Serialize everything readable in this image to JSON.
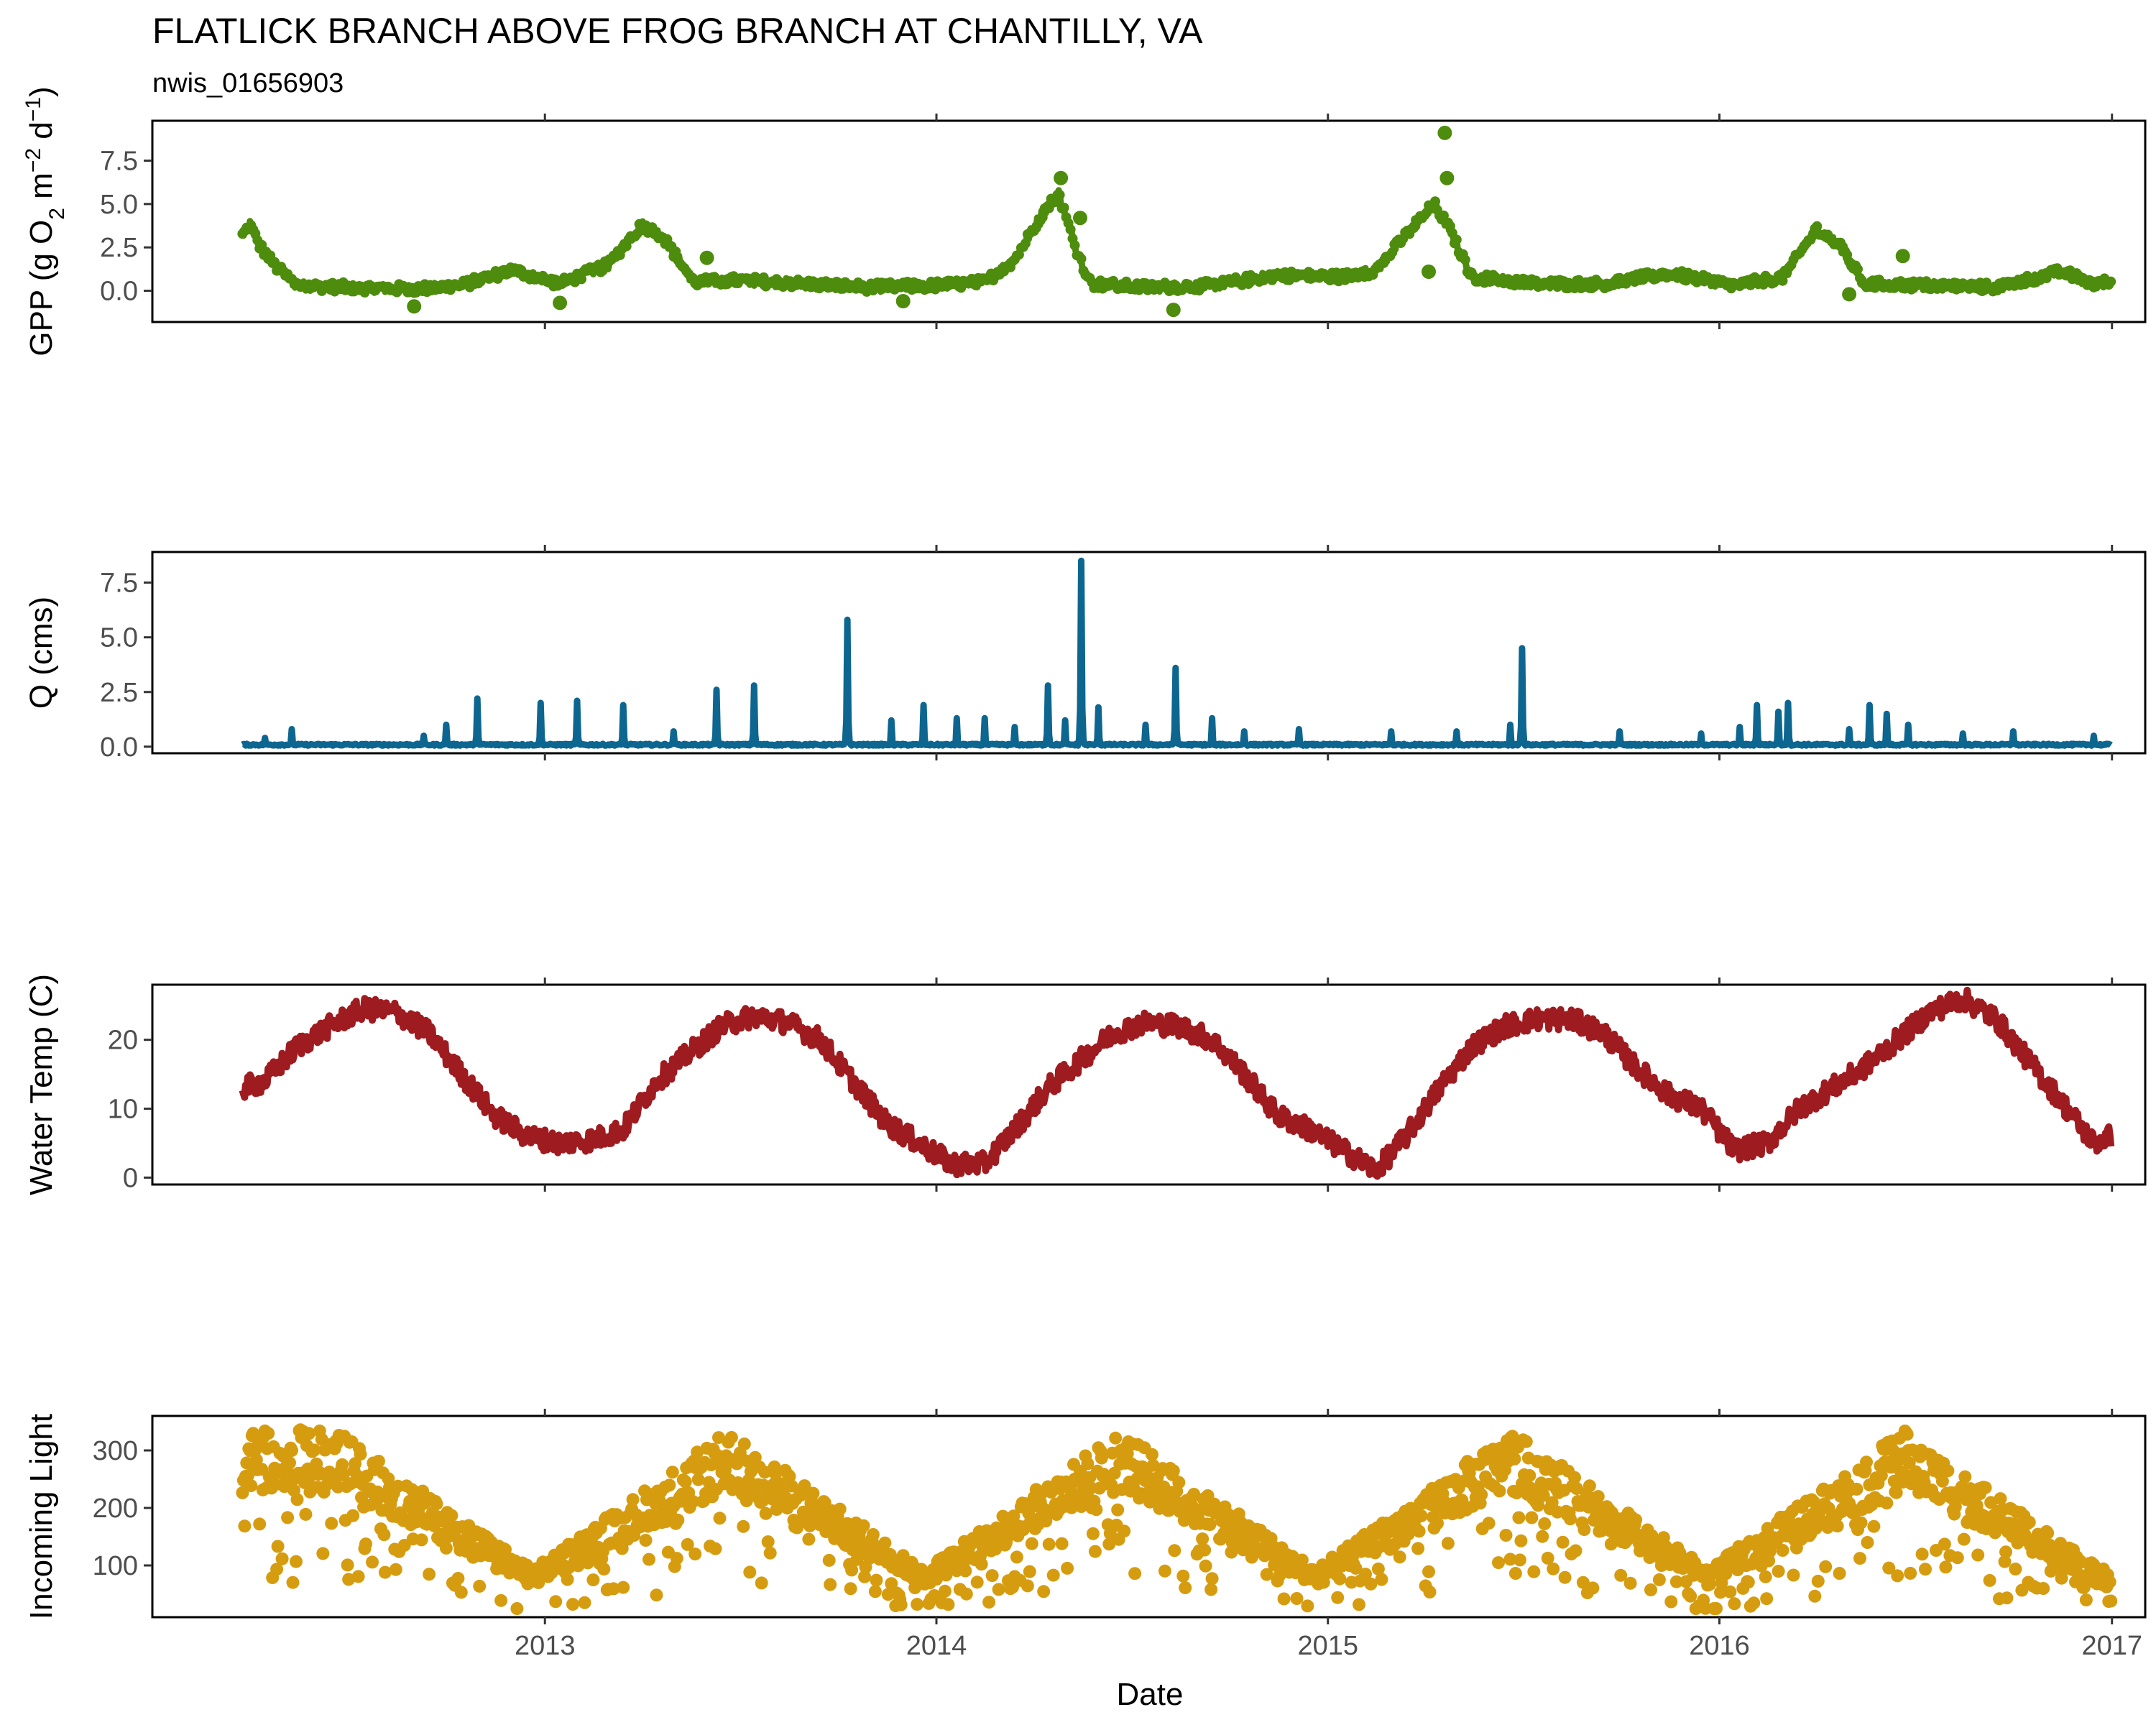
{
  "chart_data": {
    "type": "line",
    "title": "FLATLICK BRANCH ABOVE FROG BRANCH AT CHANTILLY, VA",
    "subtitle": "nwis_01656903",
    "xlabel": "Date",
    "x_ticks": [
      "2013",
      "2014",
      "2015",
      "2016",
      "2017"
    ],
    "xlim": [
      "2012-01-01",
      "2017-02-01"
    ],
    "panels": [
      {
        "name": "GPP",
        "type": "line+scatter",
        "ylabel": "GPP (g O2 m-2 d-1)",
        "color": "#4d8c0c",
        "ylim": [
          -1.8,
          9.8
        ],
        "y_ticks": [
          "7.5",
          "5.0",
          "2.5",
          "0.0"
        ],
        "tick_values": [
          7.5,
          5.0,
          2.5,
          0.0
        ],
        "points": [
          [
            "2012-03-25",
            3.2
          ],
          [
            "2012-04-01",
            3.8
          ],
          [
            "2012-04-10",
            2.6
          ],
          [
            "2012-04-25",
            1.4
          ],
          [
            "2012-05-15",
            0.3
          ],
          [
            "2012-07-01",
            0.2
          ],
          [
            "2012-09-01",
            0.1
          ],
          [
            "2012-10-15",
            0.3
          ],
          [
            "2012-12-01",
            1.2
          ],
          [
            "2013-01-15",
            0.4
          ],
          [
            "2013-03-01",
            1.5
          ],
          [
            "2013-04-01",
            3.8
          ],
          [
            "2013-04-20",
            3.2
          ],
          [
            "2013-05-20",
            0.5
          ],
          [
            "2013-07-01",
            0.6
          ],
          [
            "2013-09-01",
            0.4
          ],
          [
            "2013-11-01",
            0.2
          ],
          [
            "2014-01-01",
            0.3
          ],
          [
            "2014-02-15",
            0.5
          ],
          [
            "2014-03-15",
            1.8
          ],
          [
            "2014-04-10",
            4.5
          ],
          [
            "2014-04-25",
            5.6
          ],
          [
            "2014-05-10",
            2.6
          ],
          [
            "2014-05-25",
            0.4
          ],
          [
            "2014-07-15",
            0.2
          ],
          [
            "2014-09-15",
            0.3
          ],
          [
            "2014-11-15",
            0.9
          ],
          [
            "2015-01-15",
            0.8
          ],
          [
            "2015-02-15",
            1.2
          ],
          [
            "2015-03-20",
            3.6
          ],
          [
            "2015-04-10",
            5.0
          ],
          [
            "2015-04-25",
            3.5
          ],
          [
            "2015-05-15",
            0.8
          ],
          [
            "2015-07-15",
            0.4
          ],
          [
            "2015-09-15",
            0.4
          ],
          [
            "2015-11-15",
            1.0
          ],
          [
            "2016-01-15",
            0.3
          ],
          [
            "2016-03-01",
            0.8
          ],
          [
            "2016-04-01",
            3.6
          ],
          [
            "2016-04-25",
            2.4
          ],
          [
            "2016-05-15",
            0.4
          ],
          [
            "2016-07-15",
            0.3
          ],
          [
            "2016-09-15",
            0.2
          ],
          [
            "2016-11-15",
            1.1
          ],
          [
            "2016-12-15",
            0.4
          ],
          [
            "2016-12-31",
            0.5
          ]
        ],
        "outliers": [
          [
            "2015-04-20",
            9.1
          ],
          [
            "2015-04-22",
            6.5
          ],
          [
            "2014-04-27",
            6.5
          ],
          [
            "2013-01-15",
            -0.7
          ],
          [
            "2014-08-10",
            -1.1
          ],
          [
            "2012-09-01",
            -0.9
          ],
          [
            "2013-06-01",
            1.9
          ],
          [
            "2015-04-05",
            1.1
          ],
          [
            "2014-05-15",
            4.2
          ],
          [
            "2016-05-01",
            -0.2
          ],
          [
            "2016-06-20",
            2.0
          ],
          [
            "2013-12-01",
            -0.6
          ]
        ]
      },
      {
        "name": "Q",
        "type": "line",
        "ylabel": "Q (cms)",
        "color": "#0d6690",
        "ylim": [
          -0.3,
          8.9
        ],
        "y_ticks": [
          "7.5",
          "5.0",
          "2.5",
          "0.0"
        ],
        "tick_values": [
          7.5,
          5.0,
          2.5,
          0.0
        ],
        "baseline": 0.05,
        "peaks": [
          [
            "2012-04-15",
            0.4
          ],
          [
            "2012-05-10",
            0.8
          ],
          [
            "2012-09-10",
            0.5
          ],
          [
            "2012-10-01",
            1.0
          ],
          [
            "2012-10-30",
            2.2
          ],
          [
            "2012-12-28",
            2.0
          ],
          [
            "2013-01-31",
            2.1
          ],
          [
            "2013-03-15",
            1.9
          ],
          [
            "2013-05-01",
            0.7
          ],
          [
            "2013-06-10",
            2.6
          ],
          [
            "2013-07-15",
            2.8
          ],
          [
            "2013-10-10",
            5.8
          ],
          [
            "2013-11-20",
            1.2
          ],
          [
            "2013-12-20",
            1.9
          ],
          [
            "2014-01-20",
            1.3
          ],
          [
            "2014-02-15",
            1.3
          ],
          [
            "2014-03-15",
            0.9
          ],
          [
            "2014-04-15",
            2.8
          ],
          [
            "2014-05-01",
            1.2
          ],
          [
            "2014-05-16",
            8.5
          ],
          [
            "2014-06-01",
            1.8
          ],
          [
            "2014-07-15",
            1.0
          ],
          [
            "2014-08-12",
            3.6
          ],
          [
            "2014-09-15",
            1.3
          ],
          [
            "2014-10-15",
            0.7
          ],
          [
            "2014-12-05",
            0.8
          ],
          [
            "2015-03-01",
            0.7
          ],
          [
            "2015-05-01",
            0.7
          ],
          [
            "2015-06-20",
            1.0
          ],
          [
            "2015-07-01",
            4.5
          ],
          [
            "2015-09-30",
            0.7
          ],
          [
            "2015-12-15",
            0.6
          ],
          [
            "2016-01-20",
            0.9
          ],
          [
            "2016-02-05",
            1.9
          ],
          [
            "2016-02-25",
            1.6
          ],
          [
            "2016-03-05",
            2.0
          ],
          [
            "2016-05-01",
            0.8
          ],
          [
            "2016-05-20",
            1.9
          ],
          [
            "2016-06-05",
            1.5
          ],
          [
            "2016-06-25",
            1.0
          ],
          [
            "2016-08-15",
            0.6
          ],
          [
            "2016-10-01",
            0.7
          ],
          [
            "2016-12-15",
            0.5
          ]
        ]
      },
      {
        "name": "Water Temp",
        "type": "line",
        "ylabel": "Water Temp (C)",
        "color": "#9e1b20",
        "ylim": [
          -1,
          28
        ],
        "y_ticks": [
          "20",
          "10",
          "0"
        ],
        "tick_values": [
          20,
          10,
          0
        ],
        "points": [
          [
            "2012-03-25",
            13
          ],
          [
            "2012-04-15",
            14
          ],
          [
            "2012-05-15",
            19
          ],
          [
            "2012-06-15",
            22
          ],
          [
            "2012-07-15",
            24.5
          ],
          [
            "2012-08-15",
            24
          ],
          [
            "2012-09-15",
            21
          ],
          [
            "2012-10-15",
            15
          ],
          [
            "2012-11-15",
            9
          ],
          [
            "2012-12-15",
            6
          ],
          [
            "2013-01-15",
            5
          ],
          [
            "2013-02-15",
            5.5
          ],
          [
            "2013-03-15",
            7
          ],
          [
            "2013-04-15",
            14
          ],
          [
            "2013-05-15",
            18
          ],
          [
            "2013-06-15",
            22
          ],
          [
            "2013-07-15",
            23.5
          ],
          [
            "2013-08-15",
            22.5
          ],
          [
            "2013-09-15",
            20
          ],
          [
            "2013-10-15",
            14
          ],
          [
            "2013-11-15",
            8
          ],
          [
            "2013-12-15",
            5
          ],
          [
            "2014-01-15",
            2
          ],
          [
            "2014-02-15",
            2
          ],
          [
            "2014-03-15",
            7
          ],
          [
            "2014-04-15",
            13
          ],
          [
            "2014-05-15",
            17
          ],
          [
            "2014-06-15",
            21
          ],
          [
            "2014-07-15",
            22.5
          ],
          [
            "2014-08-15",
            22
          ],
          [
            "2014-09-15",
            20
          ],
          [
            "2014-10-15",
            15
          ],
          [
            "2014-11-15",
            9
          ],
          [
            "2014-12-15",
            7
          ],
          [
            "2015-01-15",
            4
          ],
          [
            "2015-02-15",
            1
          ],
          [
            "2015-03-15",
            6
          ],
          [
            "2015-04-15",
            13
          ],
          [
            "2015-05-15",
            19
          ],
          [
            "2015-06-15",
            22
          ],
          [
            "2015-07-15",
            23
          ],
          [
            "2015-08-15",
            23
          ],
          [
            "2015-09-15",
            21
          ],
          [
            "2015-10-15",
            16
          ],
          [
            "2015-11-15",
            12
          ],
          [
            "2015-12-15",
            10
          ],
          [
            "2016-01-15",
            4
          ],
          [
            "2016-02-15",
            5
          ],
          [
            "2016-03-15",
            10
          ],
          [
            "2016-04-15",
            13
          ],
          [
            "2016-05-15",
            16
          ],
          [
            "2016-06-15",
            20
          ],
          [
            "2016-07-15",
            24
          ],
          [
            "2016-08-15",
            26
          ],
          [
            "2016-09-15",
            23
          ],
          [
            "2016-10-15",
            17
          ],
          [
            "2016-11-15",
            11
          ],
          [
            "2016-12-15",
            5
          ],
          [
            "2016-12-31",
            6
          ]
        ]
      },
      {
        "name": "Incoming Light",
        "type": "scatter",
        "ylabel": "Incoming Light",
        "color": "#d69c10",
        "ylim": [
          10,
          360
        ],
        "y_ticks": [
          "300",
          "200",
          "100"
        ],
        "tick_values": [
          300,
          200,
          100
        ],
        "envelope": [
          [
            "2012-06-21",
            320
          ],
          [
            "2012-12-21",
            90
          ],
          [
            "2013-06-21",
            320
          ],
          [
            "2013-12-21",
            90
          ],
          [
            "2014-06-21",
            320
          ],
          [
            "2014-12-21",
            90
          ],
          [
            "2015-06-21",
            320
          ],
          [
            "2015-12-21",
            90
          ],
          [
            "2016-06-21",
            320
          ],
          [
            "2016-12-21",
            90
          ]
        ],
        "x_range": [
          "2012-03-25",
          "2016-12-31"
        ]
      }
    ]
  }
}
